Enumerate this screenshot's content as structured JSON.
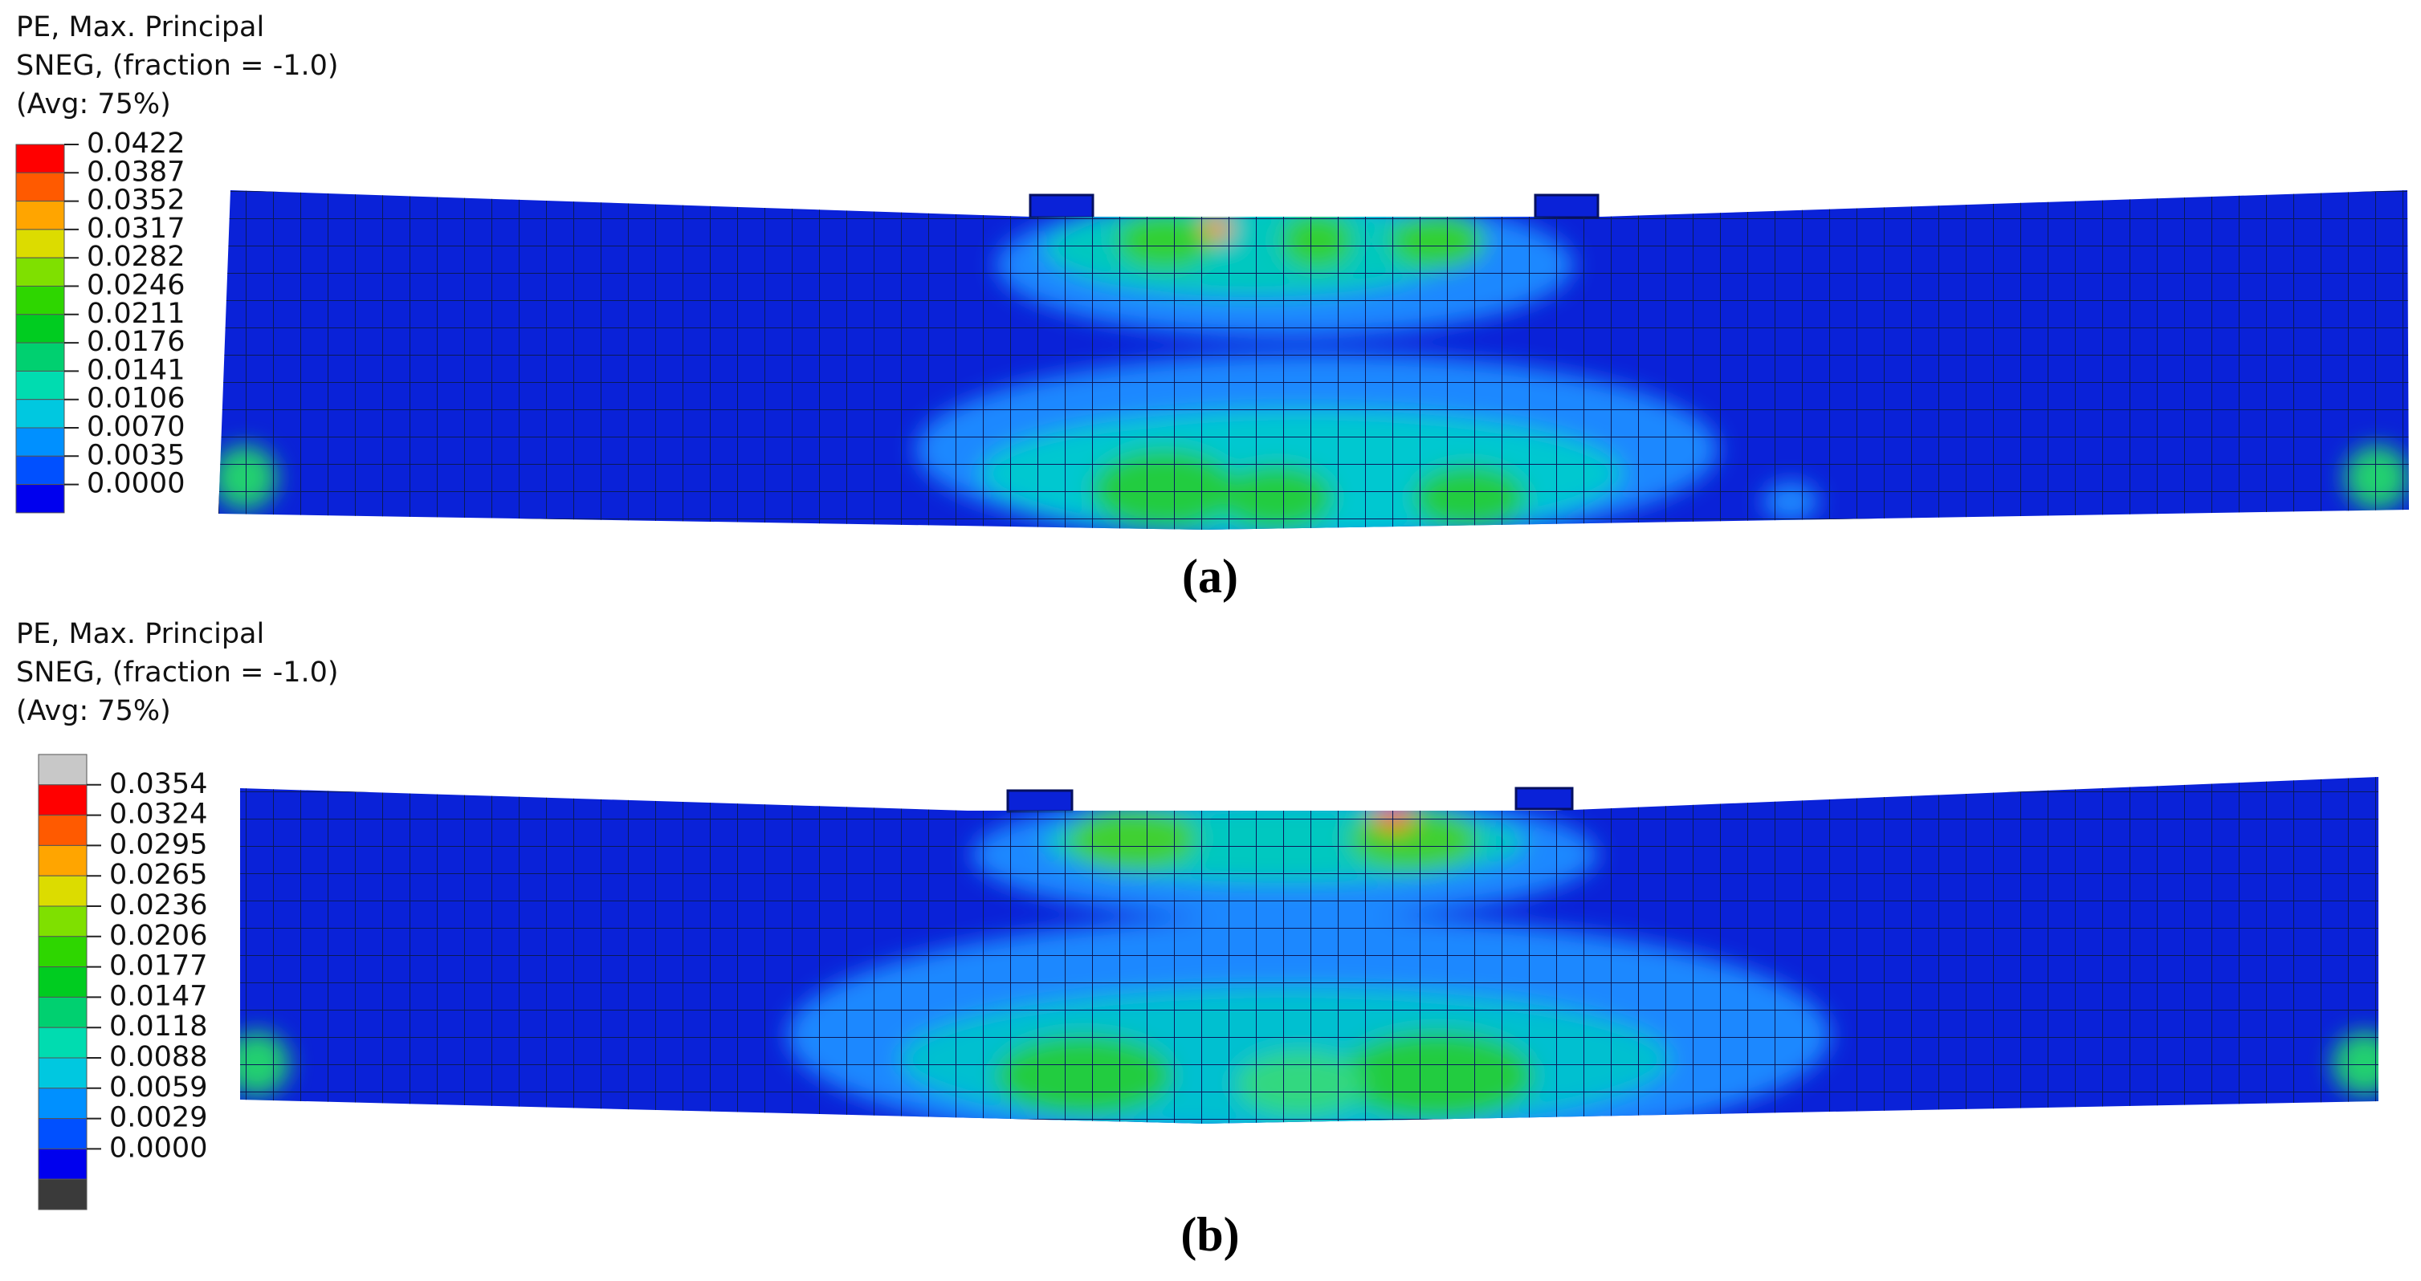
{
  "panels": [
    {
      "legend": {
        "title": [
          "PE, Max. Principal",
          "SNEG, (fraction = -1.0)",
          "(Avg: 75%)"
        ],
        "labels": [
          "0.0422",
          "0.0387",
          "0.0352",
          "0.0317",
          "0.0282",
          "0.0246",
          "0.0211",
          "0.0176",
          "0.0141",
          "0.0106",
          "0.0070",
          "0.0035",
          "0.0000"
        ]
      },
      "caption": "(a)"
    },
    {
      "legend": {
        "title": [
          "PE, Max. Principal",
          "SNEG, (fraction = -1.0)",
          "(Avg: 75%)"
        ],
        "labels": [
          "0.0354",
          "0.0324",
          "0.0295",
          "0.0265",
          "0.0236",
          "0.0206",
          "0.0177",
          "0.0147",
          "0.0118",
          "0.0088",
          "0.0059",
          "0.0029",
          "0.0000"
        ]
      },
      "caption": "(b)"
    }
  ]
}
